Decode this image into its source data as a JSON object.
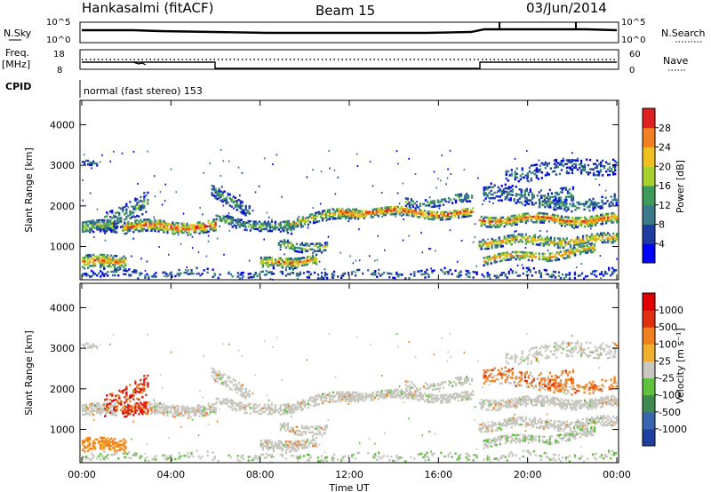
{
  "header": {
    "station": "Hankasalmi (fitACF)",
    "beam": "Beam 15",
    "date": "03/Jun/2014"
  },
  "summary": {
    "nsky_label": "N.Sky",
    "nsky_ticks": [
      "10^5",
      "10^0"
    ],
    "nsearch_label": "N.Search",
    "freq_label_1": "Freq.",
    "freq_label_2": "[MHz]",
    "freq_ticks": [
      "18",
      "8"
    ],
    "nave_label": "Nave",
    "nave_ticks": [
      "60",
      "0"
    ],
    "cpid_label": "CPID",
    "cpid_text": "normal (fast stereo) 153"
  },
  "chart_data": [
    {
      "type": "heatmap",
      "title": "",
      "ylabel": "Slant Range [km]",
      "xlabel": "",
      "ylim": [
        180,
        4600
      ],
      "yticks": [
        "4000",
        "3000",
        "2000",
        "1000"
      ],
      "xticks": [
        "00:00",
        "04:00",
        "08:00",
        "12:00",
        "16:00",
        "20:00",
        "00:00"
      ],
      "colorbar": {
        "label": "Power [dB]",
        "ticks": [
          "28",
          "24",
          "20",
          "16",
          "12",
          "8",
          "4"
        ],
        "colors": [
          "#0000ff",
          "#1e3ca0",
          "#3a7a8a",
          "#3e9a5a",
          "#a8d030",
          "#f0c020",
          "#f08020",
          "#e02020"
        ]
      }
    },
    {
      "type": "heatmap",
      "title": "",
      "ylabel": "Slant Range [km]",
      "xlabel": "Time UT",
      "ylim": [
        180,
        4600
      ],
      "yticks": [
        "4000",
        "3000",
        "2000",
        "1000"
      ],
      "xticks": [
        "00:00",
        "04:00",
        "08:00",
        "12:00",
        "16:00",
        "20:00",
        "00:00"
      ],
      "colorbar": {
        "label": "Velocity [m s⁻¹]",
        "ticks": [
          "1000",
          "500",
          "100",
          "25",
          "-25",
          "-100",
          "-500",
          "-1000"
        ],
        "colors": [
          "#1f3fa0",
          "#3a66b0",
          "#3f8a50",
          "#60c040",
          "#c8c8c0",
          "#f0b030",
          "#f08020",
          "#e03010",
          "#e00000"
        ]
      }
    }
  ]
}
